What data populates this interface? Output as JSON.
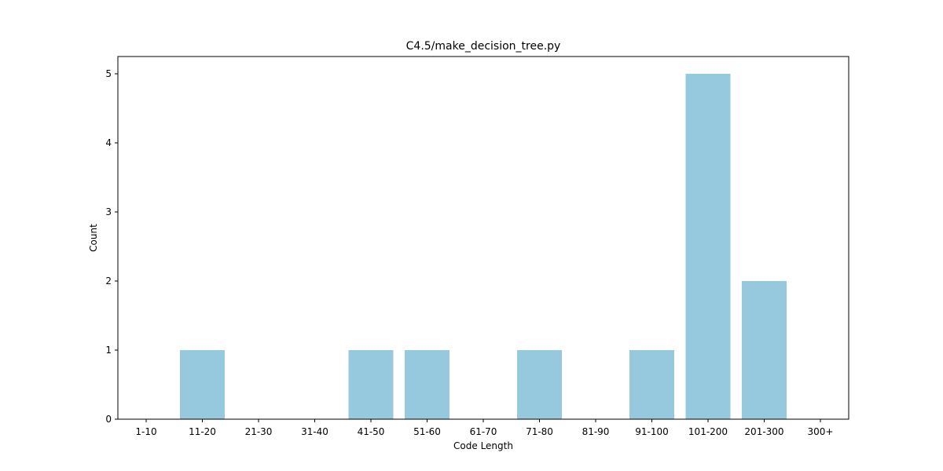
{
  "chart_data": {
    "type": "bar",
    "title": "C4.5/make_decision_tree.py",
    "xlabel": "Code Length",
    "ylabel": "Count",
    "categories": [
      "1-10",
      "11-20",
      "21-30",
      "31-40",
      "41-50",
      "51-60",
      "61-70",
      "71-80",
      "81-90",
      "91-100",
      "101-200",
      "201-300",
      "300+"
    ],
    "values": [
      0,
      1,
      0,
      0,
      1,
      1,
      0,
      1,
      0,
      1,
      5,
      2,
      0
    ],
    "yticks": [
      "0",
      "1",
      "2",
      "3",
      "4",
      "5"
    ],
    "ylim": [
      0,
      5.25
    ],
    "grid": false,
    "legend": "none",
    "bar_color": "#96c9dd"
  }
}
